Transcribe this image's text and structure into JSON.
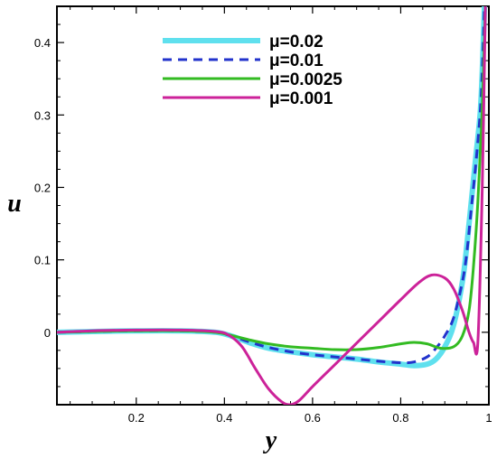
{
  "chart_data": {
    "type": "line",
    "xlabel": "y",
    "ylabel": "u",
    "xlim": [
      0.02,
      1.0
    ],
    "ylim": [
      -0.1,
      0.45
    ],
    "x_ticks": [
      0.2,
      0.4,
      0.6,
      0.8,
      1
    ],
    "x_tick_labels": [
      "0.2",
      "0.4",
      "0.6",
      "0.8",
      "1"
    ],
    "y_ticks": [
      0,
      0.1,
      0.2,
      0.3,
      0.4
    ],
    "y_tick_labels": [
      "0",
      "0.1",
      "0.2",
      "0.3",
      "0.4"
    ],
    "grid": false,
    "legend_position": "top-center",
    "series": [
      {
        "name": "μ=0.02",
        "color": "#5fe0ee",
        "style": "solid",
        "x": [
          0.02,
          0.1,
          0.2,
          0.3,
          0.38,
          0.42,
          0.46,
          0.5,
          0.55,
          0.6,
          0.65,
          0.7,
          0.75,
          0.8,
          0.83,
          0.86,
          0.88,
          0.9,
          0.92,
          0.94,
          0.95,
          0.96,
          0.97,
          0.98,
          0.985,
          0.99
        ],
        "y": [
          0,
          0.001,
          0.002,
          0.002,
          0.0,
          -0.006,
          -0.015,
          -0.022,
          -0.027,
          -0.031,
          -0.034,
          -0.037,
          -0.041,
          -0.044,
          -0.046,
          -0.044,
          -0.037,
          -0.02,
          0.01,
          0.07,
          0.12,
          0.18,
          0.24,
          0.3,
          0.36,
          0.45
        ]
      },
      {
        "name": "μ=0.01",
        "color": "#2233cc",
        "style": "dashed",
        "x": [
          0.02,
          0.1,
          0.2,
          0.3,
          0.38,
          0.42,
          0.46,
          0.5,
          0.55,
          0.6,
          0.65,
          0.7,
          0.75,
          0.8,
          0.83,
          0.86,
          0.88,
          0.9,
          0.92,
          0.94,
          0.95,
          0.96,
          0.97,
          0.98,
          0.985,
          0.99
        ],
        "y": [
          0,
          0.001,
          0.002,
          0.002,
          0.0,
          -0.006,
          -0.014,
          -0.021,
          -0.027,
          -0.031,
          -0.034,
          -0.037,
          -0.04,
          -0.042,
          -0.041,
          -0.034,
          -0.022,
          -0.005,
          0.02,
          0.07,
          0.11,
          0.17,
          0.23,
          0.3,
          0.36,
          0.45
        ]
      },
      {
        "name": "μ=0.0025",
        "color": "#33bb22",
        "style": "solid",
        "x": [
          0.02,
          0.1,
          0.2,
          0.3,
          0.38,
          0.42,
          0.46,
          0.5,
          0.55,
          0.6,
          0.65,
          0.7,
          0.75,
          0.8,
          0.83,
          0.86,
          0.89,
          0.92,
          0.94,
          0.955,
          0.965,
          0.975,
          0.985,
          0.992
        ],
        "y": [
          0,
          0.001,
          0.002,
          0.002,
          0.0,
          -0.005,
          -0.011,
          -0.016,
          -0.02,
          -0.022,
          -0.024,
          -0.024,
          -0.021,
          -0.016,
          -0.014,
          -0.016,
          -0.022,
          -0.02,
          -0.005,
          0.03,
          0.09,
          0.18,
          0.31,
          0.45
        ]
      },
      {
        "name": "μ=0.001",
        "color": "#cc2299",
        "style": "solid",
        "x": [
          0.02,
          0.1,
          0.2,
          0.3,
          0.38,
          0.41,
          0.44,
          0.47,
          0.5,
          0.53,
          0.55,
          0.57,
          0.6,
          0.65,
          0.7,
          0.75,
          0.8,
          0.84,
          0.87,
          0.9,
          0.92,
          0.94,
          0.955,
          0.965,
          0.975,
          0.985,
          0.992
        ],
        "y": [
          0,
          0.002,
          0.003,
          0.003,
          0.001,
          -0.004,
          -0.02,
          -0.05,
          -0.078,
          -0.096,
          -0.1,
          -0.094,
          -0.075,
          -0.045,
          -0.015,
          0.015,
          0.045,
          0.068,
          0.079,
          0.075,
          0.06,
          0.03,
          0.0,
          -0.014,
          -0.014,
          0.2,
          0.45
        ]
      }
    ]
  }
}
